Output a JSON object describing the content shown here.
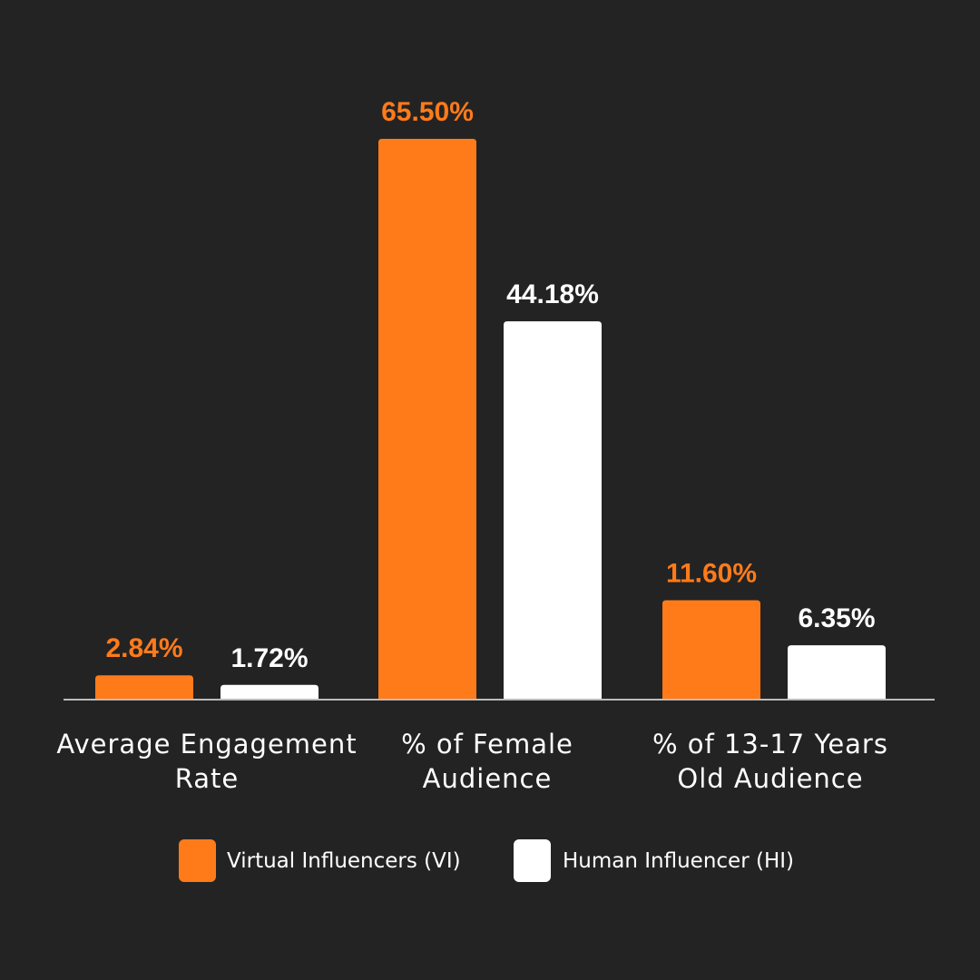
{
  "chart_data": {
    "type": "bar",
    "categories": [
      [
        "Average Engagement",
        "Rate"
      ],
      [
        "% of Female",
        "Audience"
      ],
      [
        "% of 13-17 Years",
        "Old Audience"
      ]
    ],
    "series": [
      {
        "name": "Virtual Influencers (VI)",
        "values": [
          2.84,
          65.5,
          11.6
        ],
        "labels": [
          "2.84%",
          "65.50%",
          "11.60%"
        ]
      },
      {
        "name": "Human Influencer (HI)",
        "values": [
          1.72,
          44.18,
          6.35
        ],
        "labels": [
          "1.72%",
          "44.18%",
          "6.35%"
        ]
      }
    ],
    "ylim": [
      0,
      70
    ],
    "grid": false,
    "legend": "bottom",
    "colors": {
      "background": "#232323",
      "vi": "#FF7B1A",
      "hi": "#FFFFFF",
      "axis": "#BBBBBB",
      "text": "#FFFFFF"
    }
  }
}
